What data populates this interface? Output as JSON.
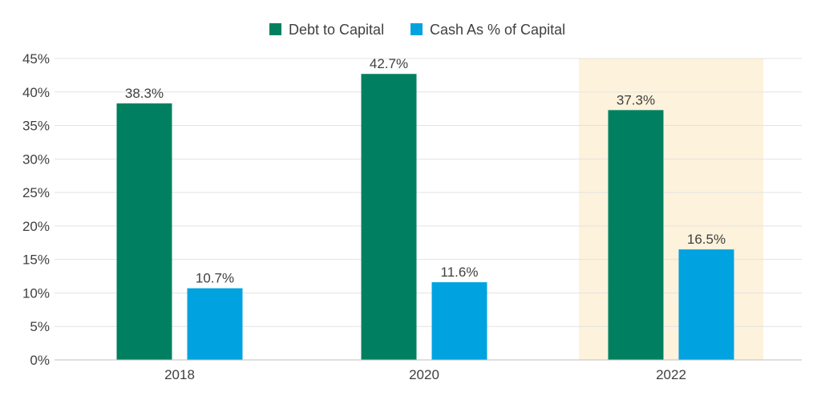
{
  "chart_data": {
    "type": "bar",
    "categories": [
      "2018",
      "2020",
      "2022"
    ],
    "series": [
      {
        "name": "Debt to Capital",
        "values": [
          38.3,
          42.7,
          37.3
        ],
        "labels": [
          "38.3%",
          "42.7%",
          "37.3%"
        ]
      },
      {
        "name": "Cash As % of Capital",
        "values": [
          10.7,
          11.6,
          16.5
        ],
        "labels": [
          "10.7%",
          "11.6%",
          "16.5%"
        ]
      }
    ],
    "ylim": [
      0,
      45
    ],
    "yticks": [
      0,
      5,
      10,
      15,
      20,
      25,
      30,
      35,
      40,
      45
    ],
    "ytick_labels": [
      "0%",
      "5%",
      "10%",
      "15%",
      "20%",
      "25%",
      "30%",
      "35%",
      "40%",
      "45%"
    ],
    "highlighted_category": "2022",
    "grid": true,
    "legend_position": "top-center",
    "title": "",
    "xlabel": "",
    "ylabel": ""
  },
  "colors": {
    "debt": "#008060",
    "cash": "#00a3e0",
    "highlight": "#fdf2dc",
    "grid": "#e3e3e3",
    "axis": "#bfbfbf",
    "text": "#404040"
  }
}
